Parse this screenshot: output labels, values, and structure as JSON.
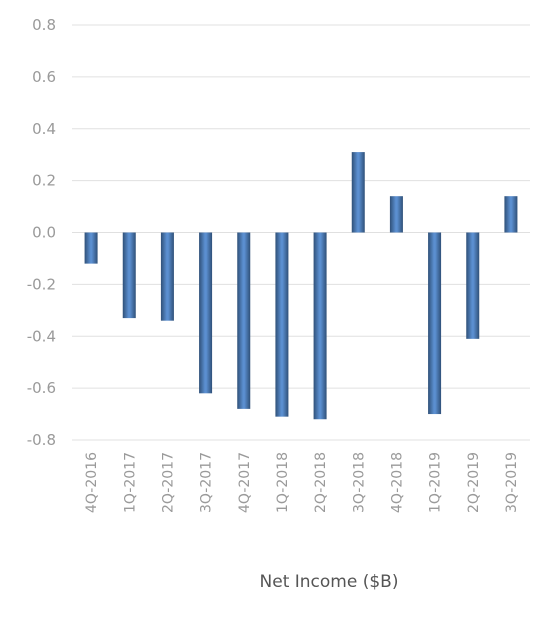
{
  "chart_data": {
    "type": "bar",
    "xlabel": "Net Income ($B)",
    "ylabel": "",
    "ylim": [
      -0.8,
      0.8
    ],
    "yticks": [
      "0.8",
      "0.6",
      "0.4",
      "0.2",
      "0.0",
      "-0.2",
      "-0.4",
      "-0.6",
      "-0.8"
    ],
    "categories": [
      "4Q-2016",
      "1Q-2017",
      "2Q-2017",
      "3Q-2017",
      "4Q-2017",
      "1Q-2018",
      "2Q-2018",
      "3Q-2018",
      "4Q-2018",
      "1Q-2019",
      "2Q-2019",
      "3Q-2019"
    ],
    "values": [
      -0.12,
      -0.33,
      -0.34,
      -0.62,
      -0.68,
      -0.71,
      -0.72,
      0.31,
      0.14,
      -0.7,
      -0.41,
      0.14
    ],
    "grid": true,
    "bar_color": "#5b8fd0",
    "bar_color_dark": "#2f5078"
  }
}
